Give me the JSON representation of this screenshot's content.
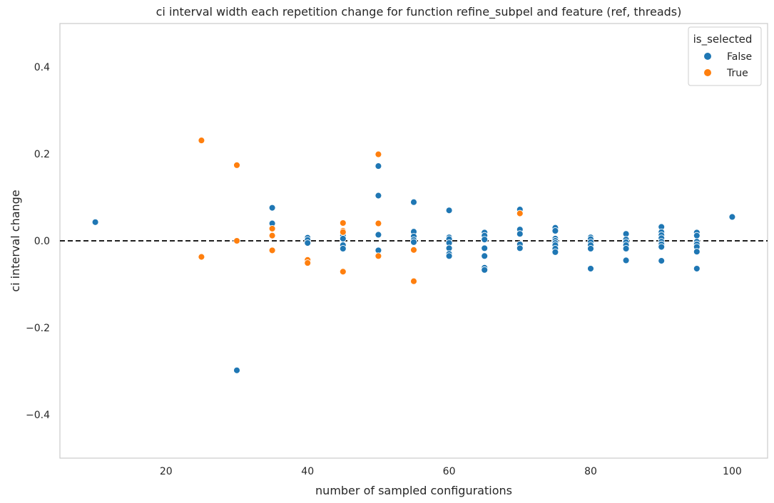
{
  "chart_data": {
    "type": "scatter",
    "title": "ci interval width each repetition change for function refine_subpel and feature (ref, threads)",
    "xlabel": "number of sampled configurations",
    "ylabel": "ci interval change",
    "xlim": [
      5,
      105
    ],
    "ylim": [
      -0.5,
      0.5
    ],
    "xticks": [
      20,
      40,
      60,
      80,
      100
    ],
    "yticks": [
      -0.4,
      -0.2,
      0.0,
      0.2,
      0.4
    ],
    "ytick_labels": [
      "−0.4",
      "−0.2",
      "0.0",
      "0.2",
      "0.4"
    ],
    "grid": false,
    "reference_line": {
      "y": 0,
      "style": "dashed",
      "color": "#000000"
    },
    "legend": {
      "title": "is_selected",
      "position": "top-right"
    },
    "series": [
      {
        "name": "False",
        "color": "#1f77b4",
        "points": [
          [
            10,
            0.043
          ],
          [
            30,
            -0.298
          ],
          [
            35,
            0.076
          ],
          [
            35,
            0.04
          ],
          [
            40,
            0.007
          ],
          [
            40,
            0.002
          ],
          [
            40,
            -0.005
          ],
          [
            45,
            0.018
          ],
          [
            45,
            0.012
          ],
          [
            45,
            0.005
          ],
          [
            45,
            -0.01
          ],
          [
            45,
            -0.018
          ],
          [
            50,
            0.172
          ],
          [
            50,
            0.104
          ],
          [
            50,
            0.014
          ],
          [
            50,
            -0.022
          ],
          [
            55,
            0.089
          ],
          [
            55,
            0.021
          ],
          [
            55,
            0.01
          ],
          [
            55,
            0.002
          ],
          [
            55,
            -0.003
          ],
          [
            60,
            0.07
          ],
          [
            60,
            0.008
          ],
          [
            60,
            0.004
          ],
          [
            60,
            -0.005
          ],
          [
            60,
            -0.017
          ],
          [
            60,
            -0.03
          ],
          [
            60,
            -0.035
          ],
          [
            65,
            0.019
          ],
          [
            65,
            0.012
          ],
          [
            65,
            0.003
          ],
          [
            65,
            -0.017
          ],
          [
            65,
            -0.035
          ],
          [
            65,
            -0.062
          ],
          [
            65,
            -0.067
          ],
          [
            70,
            0.072
          ],
          [
            70,
            0.026
          ],
          [
            70,
            0.016
          ],
          [
            70,
            -0.008
          ],
          [
            70,
            -0.017
          ],
          [
            75,
            0.03
          ],
          [
            75,
            0.023
          ],
          [
            75,
            0.005
          ],
          [
            75,
            0.0
          ],
          [
            75,
            -0.005
          ],
          [
            75,
            -0.01
          ],
          [
            75,
            -0.018
          ],
          [
            75,
            -0.026
          ],
          [
            80,
            0.008
          ],
          [
            80,
            0.004
          ],
          [
            80,
            -0.003
          ],
          [
            80,
            -0.01
          ],
          [
            80,
            -0.018
          ],
          [
            80,
            -0.064
          ],
          [
            85,
            0.016
          ],
          [
            85,
            0.003
          ],
          [
            85,
            -0.003
          ],
          [
            85,
            -0.01
          ],
          [
            85,
            -0.018
          ],
          [
            85,
            -0.045
          ],
          [
            90,
            0.032
          ],
          [
            90,
            0.02
          ],
          [
            90,
            0.013
          ],
          [
            90,
            0.006
          ],
          [
            90,
            -0.002
          ],
          [
            90,
            -0.008
          ],
          [
            90,
            -0.014
          ],
          [
            90,
            -0.046
          ],
          [
            95,
            0.019
          ],
          [
            95,
            0.012
          ],
          [
            95,
            -0.002
          ],
          [
            95,
            -0.008
          ],
          [
            95,
            -0.014
          ],
          [
            95,
            -0.025
          ],
          [
            95,
            -0.064
          ],
          [
            100,
            0.055
          ]
        ]
      },
      {
        "name": "True",
        "color": "#ff7f0e",
        "points": [
          [
            25,
            0.231
          ],
          [
            25,
            -0.037
          ],
          [
            30,
            0.174
          ],
          [
            30,
            0.0
          ],
          [
            35,
            0.028
          ],
          [
            35,
            0.012
          ],
          [
            35,
            -0.022
          ],
          [
            40,
            -0.044
          ],
          [
            40,
            -0.051
          ],
          [
            45,
            0.041
          ],
          [
            45,
            0.023
          ],
          [
            45,
            0.02
          ],
          [
            45,
            -0.071
          ],
          [
            50,
            0.199
          ],
          [
            50,
            0.04
          ],
          [
            50,
            -0.035
          ],
          [
            55,
            -0.021
          ],
          [
            55,
            -0.093
          ],
          [
            70,
            0.063
          ]
        ]
      }
    ]
  }
}
